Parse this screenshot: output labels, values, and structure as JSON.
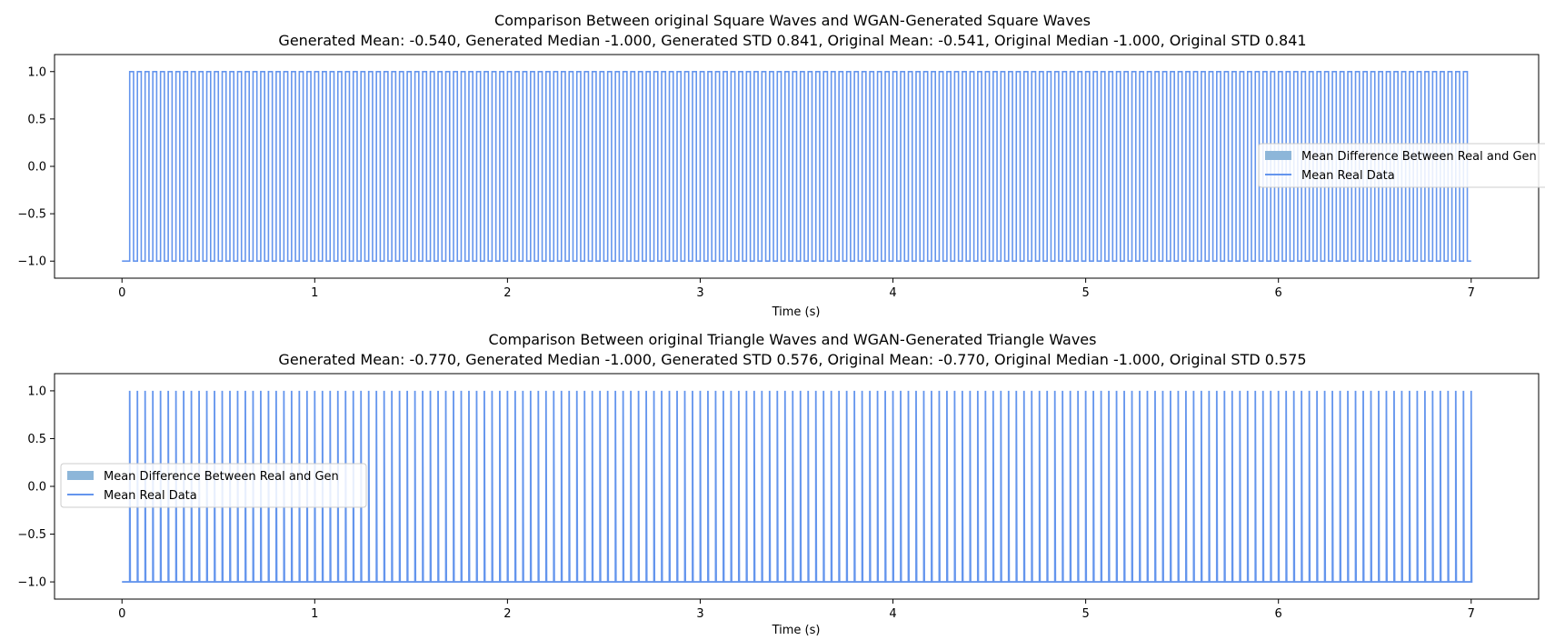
{
  "chart_data": [
    {
      "type": "line",
      "title": "Comparison Between original Square Waves and WGAN-Generated Square Waves",
      "subtitle": "Generated Mean: -0.540, Generated Median -1.000, Generated STD 0.841, Original Mean: -0.541, Original Median -1.000, Original STD 0.841",
      "xlabel": "Time (s)",
      "ylabel": "",
      "xlim": [
        -0.35,
        7.35
      ],
      "ylim": [
        -1.18,
        1.18
      ],
      "x_ticks": [
        "0",
        "1",
        "2",
        "3",
        "4",
        "5",
        "6",
        "7"
      ],
      "y_ticks": [
        "1.0",
        "0.5",
        "0.0",
        "−0.5",
        "−1.0"
      ],
      "grid": false,
      "legend": {
        "placement": "center-right",
        "entries": [
          "Mean Difference Between Real and Gen",
          "Mean Real Data"
        ]
      },
      "series": [
        {
          "name": "Mean Real Data",
          "kind": "square-wave",
          "color": "#6495ed",
          "x_start": 0,
          "x_end": 7,
          "period": 0.04,
          "first_rise": 0.04,
          "high_duration": 0.02,
          "low": -1.0,
          "high": 1.0
        },
        {
          "name": "Mean Difference Between Real and Gen",
          "kind": "fill-between",
          "color": "#8db6d9",
          "values_summary": "≈ 0 everywhere (not visible)"
        }
      ]
    },
    {
      "type": "line",
      "title": "Comparison Between original Triangle Waves and WGAN-Generated Triangle Waves",
      "subtitle": "Generated Mean: -0.770, Generated Median -1.000, Generated STD 0.576, Original Mean: -0.770, Original Median -1.000, Original STD 0.575",
      "xlabel": "Time (s)",
      "ylabel": "",
      "xlim": [
        -0.35,
        7.35
      ],
      "ylim": [
        -1.18,
        1.18
      ],
      "x_ticks": [
        "0",
        "1",
        "2",
        "3",
        "4",
        "5",
        "6",
        "7"
      ],
      "y_ticks": [
        "1.0",
        "0.5",
        "0.0",
        "−0.5",
        "−1.0"
      ],
      "grid": false,
      "legend": {
        "placement": "center-left",
        "entries": [
          "Mean Difference Between Real and Gen",
          "Mean Real Data"
        ]
      },
      "series": [
        {
          "name": "Mean Real Data",
          "kind": "spike-train",
          "color": "#6495ed",
          "x_start": 0,
          "x_end": 7,
          "period": 0.04,
          "first_peak": 0.04,
          "low": -1.0,
          "high": 1.0
        },
        {
          "name": "Mean Difference Between Real and Gen",
          "kind": "fill-between",
          "color": "#8db6d9",
          "values_summary": "≈ 0 everywhere (not visible)"
        }
      ]
    }
  ]
}
